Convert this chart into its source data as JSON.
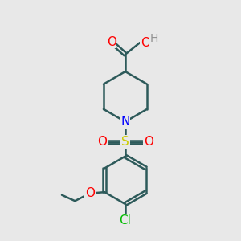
{
  "bg_color": "#e8e8e8",
  "bond_color": "#2d5a5a",
  "bond_width": 1.8,
  "atom_colors": {
    "O": "#ff0000",
    "N": "#0000ff",
    "S": "#cccc00",
    "Cl": "#00bb00",
    "H": "#909090",
    "C": "#2d5a5a"
  },
  "font_size_atom": 11,
  "font_size_small": 9
}
